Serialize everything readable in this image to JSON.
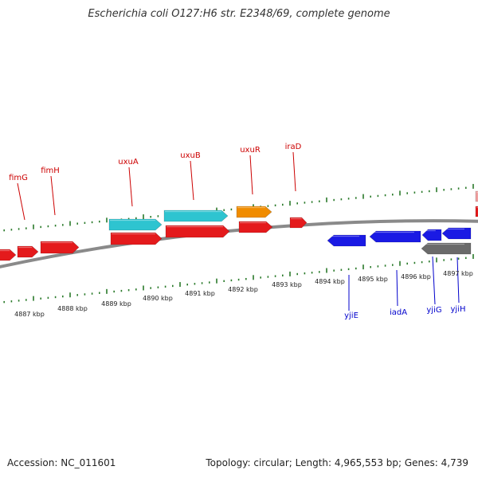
{
  "title": "Escherichia coli O127:H6 str. E2348/69, complete genome",
  "footer": {
    "accession": "Accession: NC_011601",
    "stats": "Topology: circular; Length: 4,965,553 bp; Genes: 4,739"
  },
  "colors": {
    "forward_cds": "#e41a1c",
    "reverse_cds": "#1a1ae4",
    "forward_other": "#2ec4d0",
    "forward_orange": "#f08c00",
    "reverse_gray": "#6a6a6a",
    "backbone": "#8a8a8a",
    "ticks": "#2a7a2a",
    "forward_labels": "#cc0000",
    "reverse_labels": "#0000cc"
  },
  "kbp_labels": [
    "4887 kbp",
    "4888 kbp",
    "4889 kbp",
    "4890 kbp",
    "4891 kbp",
    "4892 kbp",
    "4893 kbp",
    "4894 kbp",
    "4895 kbp",
    "4896 kbp",
    "4897 kbp"
  ],
  "forward_genes": [
    {
      "name": "fimG"
    },
    {
      "name": "fimH"
    },
    {
      "name": "uxuA"
    },
    {
      "name": "uxuB"
    },
    {
      "name": "uxuR"
    },
    {
      "name": "iraD"
    }
  ],
  "reverse_genes": [
    {
      "name": "yjiE"
    },
    {
      "name": "iadA"
    },
    {
      "name": "yjiG"
    },
    {
      "name": "yjiH"
    }
  ]
}
